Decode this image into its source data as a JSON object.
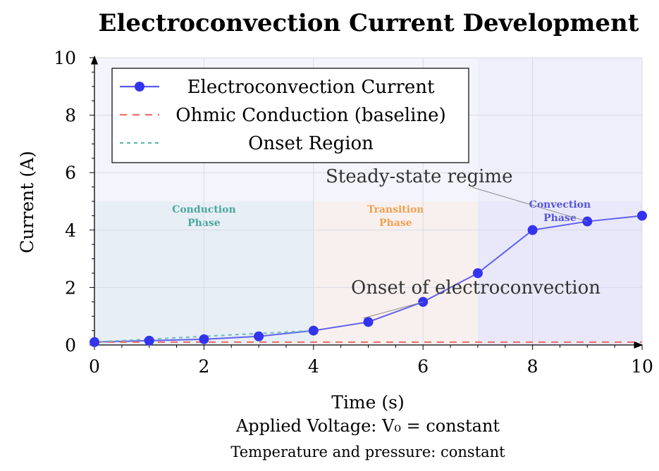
{
  "chart_data": {
    "type": "line",
    "title": "Electroconvection Current Development",
    "xlabel": "Time (s)",
    "ylabel": "Current (A)",
    "xlim": [
      0,
      10
    ],
    "ylim": [
      0,
      10
    ],
    "xticks": [
      0,
      2,
      4,
      6,
      8,
      10
    ],
    "yticks": [
      0,
      2,
      4,
      6,
      8,
      10
    ],
    "grid": true,
    "legend_position": "top-left",
    "series": [
      {
        "name": "Electroconvection Current",
        "color": "#3333ee",
        "style": "solid-markers",
        "x": [
          0,
          1,
          2,
          3,
          4,
          5,
          6,
          7,
          8,
          9,
          10
        ],
        "y": [
          0.1,
          0.15,
          0.2,
          0.3,
          0.5,
          0.8,
          1.5,
          2.5,
          4.0,
          4.3,
          4.5
        ]
      },
      {
        "name": "Ohmic Conduction (baseline)",
        "color": "#f07070",
        "style": "dashed",
        "x": [
          0,
          10
        ],
        "y": [
          0.1,
          0.1
        ]
      },
      {
        "name": "Onset Region",
        "color": "#5fb8b0",
        "style": "dotted",
        "x": [
          0,
          1,
          2,
          3,
          4
        ],
        "y": [
          0.1,
          0.2,
          0.3,
          0.4,
          0.5
        ]
      }
    ],
    "phases": [
      {
        "label_line1": "Conduction",
        "label_line2": "Phase",
        "x_start": 0,
        "x_end": 4,
        "y_top": 5,
        "color": "#4aa89e",
        "fill": "#e8eef6"
      },
      {
        "label_line1": "Transition",
        "label_line2": "Phase",
        "x_start": 4,
        "x_end": 7,
        "y_top": 5,
        "color": "#f0a050",
        "fill": "#f8f0ee"
      },
      {
        "label_line1": "Convection",
        "label_line2": "Phase",
        "x_start": 7,
        "x_end": 10,
        "y_top": 5,
        "color": "#5555dd",
        "fill": "#e8e8fa"
      }
    ],
    "annotations": [
      {
        "text": "Steady-state regime",
        "point_x": 9,
        "point_y": 4.3
      },
      {
        "text": "Onset of electroconvection",
        "point_x": 6,
        "point_y": 1.5
      }
    ],
    "captions": [
      "Applied Voltage: V₀ = constant",
      "Temperature and pressure: constant"
    ]
  }
}
